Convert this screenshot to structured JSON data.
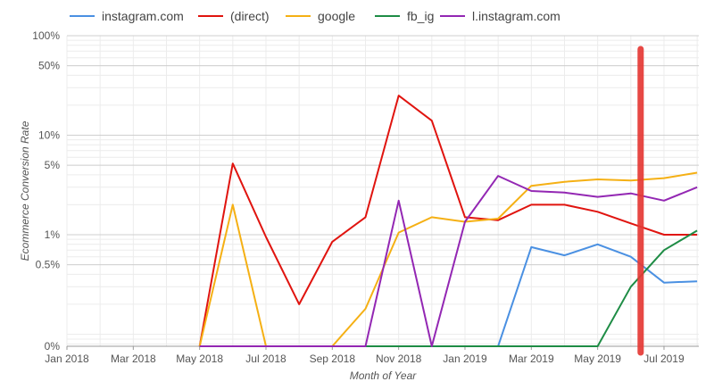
{
  "chart_data": {
    "type": "line",
    "xlabel": "Month of Year",
    "ylabel": "Ecommerce Conversion Rate",
    "yscale": "log",
    "x": [
      "2018-01",
      "2018-02",
      "2018-03",
      "2018-04",
      "2018-05",
      "2018-06",
      "2018-07",
      "2018-08",
      "2018-09",
      "2018-10",
      "2018-11",
      "2018-12",
      "2019-01",
      "2019-02",
      "2019-03",
      "2019-04",
      "2019-05",
      "2019-06",
      "2019-07",
      "2019-08"
    ],
    "x_tick_labels": [
      "Jan 2018",
      "Mar 2018",
      "May 2018",
      "Jul 2018",
      "Sep 2018",
      "Nov 2018",
      "Jan 2019",
      "Mar 2019",
      "May 2019",
      "Jul 2019"
    ],
    "y_tick_labels": [
      "100%",
      "50%",
      "10%",
      "5%",
      "1%",
      "0.5%",
      "0%"
    ],
    "series": [
      {
        "name": "instagram.com",
        "color": "#4a90e2",
        "values": [
          0,
          0,
          0,
          0,
          0,
          0,
          0,
          0,
          0,
          0,
          0,
          0,
          0,
          0,
          0.75,
          0.62,
          0.8,
          0.6,
          0.33,
          0.34
        ]
      },
      {
        "name": "(direct)",
        "color": "#e0140f",
        "values": [
          0,
          0,
          0,
          0,
          0,
          5.2,
          0.95,
          0.2,
          0.85,
          1.5,
          25,
          14,
          1.5,
          1.4,
          2,
          2,
          1.7,
          1.3,
          1,
          1
        ]
      },
      {
        "name": "google",
        "color": "#f5b014",
        "values": [
          0,
          0,
          0,
          0,
          0,
          2,
          0,
          0,
          0,
          0.18,
          1.05,
          1.5,
          1.35,
          1.45,
          3.1,
          3.4,
          3.6,
          3.5,
          3.7,
          4.2
        ]
      },
      {
        "name": "fb_ig",
        "color": "#1e8c45",
        "values": [
          0,
          0,
          0,
          0,
          0,
          0,
          0,
          0,
          0,
          0,
          0,
          0,
          0,
          0,
          0,
          0,
          0,
          0.3,
          0.7,
          1.1
        ]
      },
      {
        "name": "l.instagram.com",
        "color": "#9327b3",
        "values": [
          0,
          0,
          0,
          0,
          0,
          0,
          0,
          0,
          0,
          0,
          2.2,
          0,
          1.35,
          3.9,
          2.75,
          2.65,
          2.4,
          2.6,
          2.2,
          3
        ]
      }
    ],
    "annotation": {
      "type": "vertical-marker",
      "color": "#e53935",
      "at": "2019-06"
    },
    "grid": true,
    "legend": "top"
  }
}
